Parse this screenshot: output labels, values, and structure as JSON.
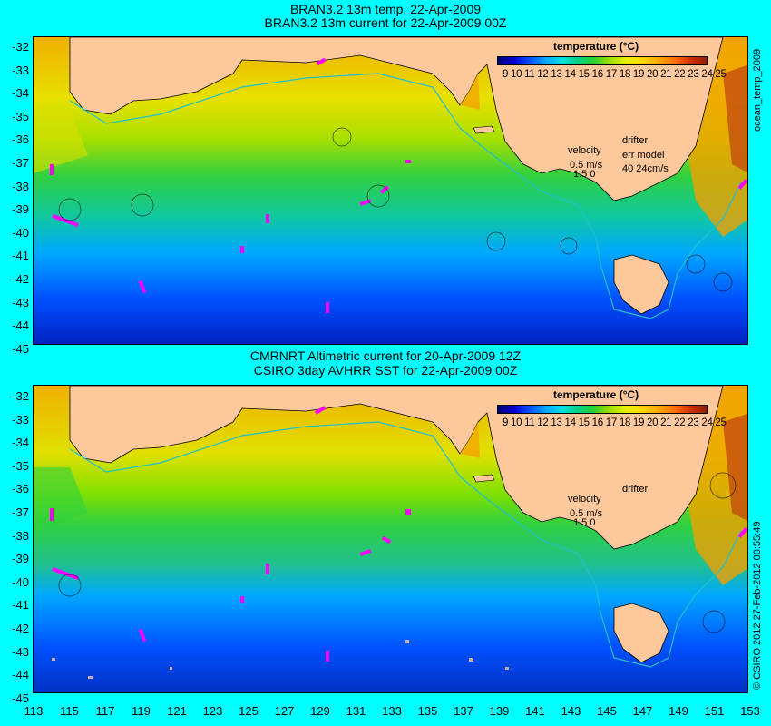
{
  "top_panel": {
    "title_line1": "BRAN3.2 13m temp. 22-Apr-2009",
    "title_line2": "BRAN3.2 13m current for 22-Apr-2009 00Z",
    "velocity_label": "velocity",
    "velocity_value": "0.5 m/s",
    "velocity_sub": "1.5 0",
    "drifter_label": "drifter",
    "err_model_label": "err model",
    "err_model_value": "40 24cm/s",
    "side_label": "ocean_temp_2009"
  },
  "bottom_panel": {
    "title_line1": "CMRNRT Altimetric current for 20-Apr-2009 12Z",
    "title_line2": "CSIRO 3day AVHRR SST for 22-Apr-2009 00Z",
    "velocity_label": "velocity",
    "velocity_value": "0.5 m/s",
    "velocity_sub": "1.5 0",
    "drifter_label": "drifter",
    "side_label": "© CSIRO 2012   27-Feb-2012 00:55:49"
  },
  "colorbar": {
    "title": "temperature (°C)",
    "ticks": "9 10 11 12 13 14 15 16 17 18 19 20 21 22 23 24 25"
  },
  "y_axis_labels": [
    "-32",
    "-33",
    "-34",
    "-35",
    "-36",
    "-37",
    "-38",
    "-39",
    "-40",
    "-41",
    "-42",
    "-43",
    "-44",
    "-45"
  ],
  "x_axis_labels": [
    "113",
    "115",
    "117",
    "119",
    "121",
    "123",
    "125",
    "127",
    "129",
    "131",
    "133",
    "135",
    "137",
    "139",
    "141",
    "143",
    "145",
    "147",
    "149",
    "151",
    "153"
  ],
  "colors": {
    "background": "#00ffff",
    "land": "#fcc89c",
    "drifter": "#ff00ff",
    "coast_line": "#20c0d0"
  }
}
